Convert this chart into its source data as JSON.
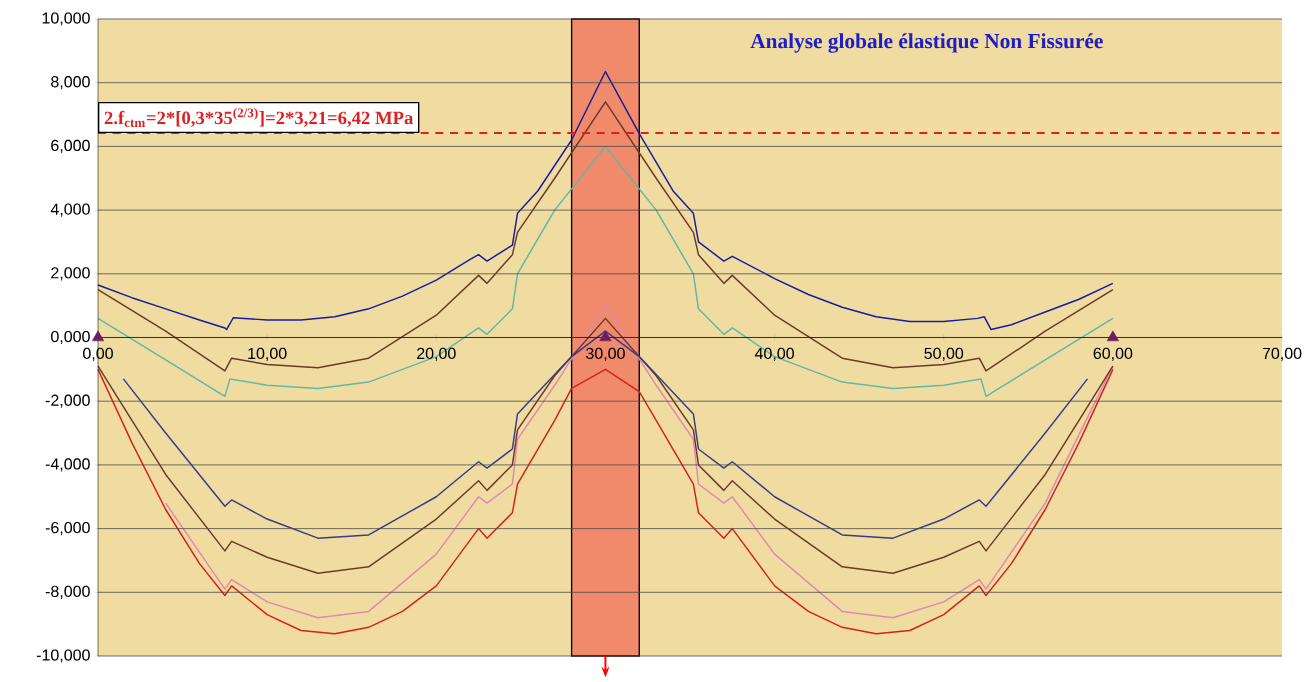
{
  "chart_data": {
    "type": "line",
    "title": "Analyse globale élastique Non Fissurée",
    "xlim": [
      0,
      70
    ],
    "ylim": [
      -10,
      10
    ],
    "xticks": [
      {
        "value": 0,
        "label": "0,00"
      },
      {
        "value": 10,
        "label": "10,00"
      },
      {
        "value": 20,
        "label": "20,00"
      },
      {
        "value": 30,
        "label": "30,00"
      },
      {
        "value": 40,
        "label": "40,00"
      },
      {
        "value": 50,
        "label": "50,00"
      },
      {
        "value": 60,
        "label": "60,00"
      },
      {
        "value": 70,
        "label": "70,00"
      }
    ],
    "yticks": [
      {
        "value": -10,
        "label": "-10,000"
      },
      {
        "value": -8,
        "label": "-8,000"
      },
      {
        "value": -6,
        "label": "-6,000"
      },
      {
        "value": -4,
        "label": "-4,000"
      },
      {
        "value": -2,
        "label": "-2,000"
      },
      {
        "value": 0,
        "label": "0,000"
      },
      {
        "value": 2,
        "label": "2,000"
      },
      {
        "value": 4,
        "label": "4,000"
      },
      {
        "value": 6,
        "label": "6,000"
      },
      {
        "value": 8,
        "label": "8,000"
      },
      {
        "value": 10,
        "label": "10,000"
      }
    ],
    "grid": "y",
    "marker": "none",
    "series": [
      {
        "color": "#1a1aa0",
        "x": [
          0,
          2,
          4,
          6,
          7.5,
          7.6,
          8,
          10,
          12,
          14,
          16,
          18,
          20,
          22,
          22.5,
          23,
          24.5,
          24.8,
          26,
          28,
          30,
          32,
          34,
          35.2,
          35.5,
          37,
          37.5,
          40,
          42,
          44,
          46,
          48,
          50,
          52,
          52.4,
          52.8,
          54,
          56,
          58,
          60
        ],
        "values": [
          1.65,
          1.25,
          0.9,
          0.55,
          0.3,
          0.25,
          0.62,
          0.55,
          0.55,
          0.65,
          0.9,
          1.3,
          1.8,
          2.45,
          2.6,
          2.4,
          2.9,
          3.9,
          4.6,
          6.2,
          8.35,
          6.4,
          4.6,
          3.9,
          3.0,
          2.4,
          2.55,
          1.85,
          1.35,
          0.95,
          0.65,
          0.5,
          0.5,
          0.6,
          0.65,
          0.25,
          0.4,
          0.8,
          1.2,
          1.7
        ]
      },
      {
        "color": "#6b3a2a",
        "x": [
          0,
          4,
          7.5,
          7.9,
          10,
          13,
          16,
          20,
          22.5,
          23,
          24.5,
          24.8,
          27,
          30,
          33,
          35.2,
          35.5,
          37,
          37.5,
          40,
          44,
          47,
          50,
          52.1,
          52.5,
          56,
          60
        ],
        "values": [
          1.5,
          0.2,
          -1.05,
          -0.65,
          -0.85,
          -0.95,
          -0.65,
          0.7,
          1.95,
          1.7,
          2.6,
          3.3,
          5.0,
          7.4,
          5.0,
          3.3,
          2.6,
          1.7,
          1.95,
          0.7,
          -0.65,
          -0.95,
          -0.85,
          -0.65,
          -1.05,
          0.2,
          1.5
        ]
      },
      {
        "color": "#5fb8a8",
        "x": [
          0,
          4,
          7.5,
          7.8,
          10,
          13,
          16,
          20,
          22.5,
          23,
          24.5,
          24.8,
          27,
          30,
          33,
          35.2,
          35.5,
          37,
          37.5,
          40,
          44,
          47,
          50,
          52.2,
          52.5,
          56,
          60
        ],
        "values": [
          0.6,
          -0.7,
          -1.85,
          -1.3,
          -1.5,
          -1.6,
          -1.4,
          -0.6,
          0.3,
          0.1,
          0.9,
          2.0,
          4.0,
          6.0,
          4.0,
          2.0,
          0.9,
          0.1,
          0.3,
          -0.6,
          -1.4,
          -1.6,
          -1.5,
          -1.3,
          -1.85,
          -0.7,
          0.6
        ]
      },
      {
        "color": "#d42020",
        "x": [
          0,
          2,
          4,
          6,
          7.5,
          7.9,
          10,
          12,
          14,
          16,
          18,
          20,
          22.5,
          23,
          24.5,
          24.8,
          27,
          28,
          30,
          32,
          33,
          35.2,
          35.5,
          37,
          37.5,
          40,
          42,
          44,
          46,
          48,
          50,
          52.1,
          52.5,
          54,
          56,
          58,
          60
        ],
        "values": [
          -1.0,
          -3.3,
          -5.4,
          -7.1,
          -8.1,
          -7.8,
          -8.7,
          -9.2,
          -9.3,
          -9.1,
          -8.6,
          -7.8,
          -6.0,
          -6.3,
          -5.5,
          -4.6,
          -2.6,
          -1.6,
          -1.0,
          -1.7,
          -2.6,
          -4.6,
          -5.5,
          -6.3,
          -6.0,
          -7.8,
          -8.6,
          -9.1,
          -9.3,
          -9.2,
          -8.7,
          -7.8,
          -8.1,
          -7.1,
          -5.4,
          -3.3,
          -1.0
        ]
      },
      {
        "color": "#e088b0",
        "x": [
          4,
          7.5,
          7.9,
          10,
          13,
          16,
          20,
          22.5,
          23,
          24.5,
          24.8,
          27,
          30,
          33,
          35.2,
          35.5,
          37,
          37.5,
          40,
          44,
          47,
          50,
          52.1,
          52.5,
          56,
          60
        ],
        "values": [
          -5.2,
          -7.9,
          -7.6,
          -8.3,
          -8.8,
          -8.6,
          -6.8,
          -5.0,
          -5.2,
          -4.6,
          -3.2,
          -1.5,
          1.0,
          -1.5,
          -3.2,
          -4.6,
          -5.2,
          -5.0,
          -6.8,
          -8.6,
          -8.8,
          -8.3,
          -7.6,
          -7.9,
          -5.2,
          -0.9
        ]
      },
      {
        "color": "#6b3a2a",
        "x": [
          0,
          4,
          7.5,
          7.9,
          10,
          13,
          16,
          20,
          22.5,
          23,
          24.5,
          24.8,
          27,
          30,
          33,
          35.2,
          35.5,
          37,
          37.5,
          40,
          44,
          47,
          50,
          52.1,
          52.5,
          56,
          60
        ],
        "values": [
          -0.9,
          -4.3,
          -6.7,
          -6.4,
          -6.9,
          -7.4,
          -7.2,
          -5.7,
          -4.5,
          -4.8,
          -4.0,
          -2.9,
          -1.2,
          0.6,
          -1.2,
          -2.9,
          -4.0,
          -4.8,
          -4.5,
          -5.7,
          -7.2,
          -7.4,
          -6.9,
          -6.4,
          -6.7,
          -4.3,
          -0.9
        ]
      },
      {
        "color": "#3a3a8a",
        "x": [
          1.5,
          4,
          7.5,
          7.9,
          10,
          13,
          16,
          20,
          22.5,
          23,
          24.5,
          24.8,
          28,
          30,
          32,
          35.2,
          35.5,
          37,
          37.5,
          40,
          44,
          47,
          50,
          52.1,
          52.5,
          56,
          58.5
        ],
        "values": [
          -1.3,
          -3.0,
          -5.3,
          -5.1,
          -5.7,
          -6.3,
          -6.2,
          -5.0,
          -3.9,
          -4.1,
          -3.5,
          -2.4,
          -0.6,
          0.2,
          -0.6,
          -2.4,
          -3.5,
          -4.1,
          -3.9,
          -5.0,
          -6.2,
          -6.3,
          -5.7,
          -5.1,
          -5.3,
          -3.0,
          -1.3
        ]
      },
      {
        "type": "scatter",
        "marker": "triangle",
        "color": "#6b1f5e",
        "x": [
          0,
          30,
          60
        ],
        "values": [
          0,
          0,
          0
        ]
      }
    ],
    "ref_lines": [
      {
        "axis": "y",
        "value": 6.42,
        "label": "2.f$_{ctm}$=2*[0,3*35$^{(2/3)}$]=2*3,21=6,42 MPa",
        "color": "#e02020",
        "line_style": "dashed"
      }
    ],
    "bands": [
      {
        "axis": "x",
        "from": 28,
        "to": 32,
        "color": "#f08a6a"
      }
    ]
  }
}
